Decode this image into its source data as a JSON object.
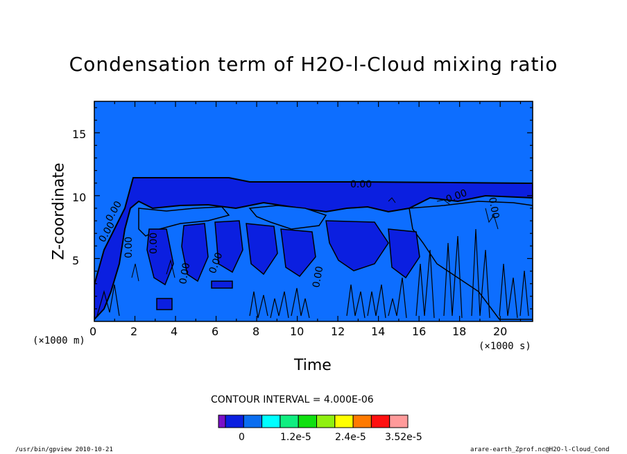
{
  "chart_data": {
    "type": "heatmap",
    "title": "Condensation term of H2O-l-Cloud mixing ratio",
    "xlabel": "Time",
    "ylabel": "Z-coordinate",
    "x_unit": "(×1000 s)",
    "y_unit": "(×1000 m)",
    "xlim": [
      0,
      21.6
    ],
    "ylim": [
      0,
      17.5
    ],
    "x_ticks": [
      "0",
      "2",
      "4",
      "6",
      "8",
      "10",
      "12",
      "14",
      "16",
      "18",
      "20"
    ],
    "x_tick_values": [
      0,
      2,
      4,
      6,
      8,
      10,
      12,
      14,
      16,
      18,
      20
    ],
    "y_ticks": [
      "5",
      "10",
      "15"
    ],
    "y_tick_values": [
      5,
      10,
      15
    ],
    "contour_interval": "CONTOUR INTERVAL = 4.000E-06",
    "contour_labels": [
      "0.00",
      "0.00",
      "0.00",
      "0.00",
      "0.00",
      "0.00",
      "0.00",
      "0.00",
      "0.00",
      "0.00"
    ],
    "cloud_top_km": 11.7,
    "background_color": "#0d6eff",
    "legend": {
      "colors": [
        "#7a10c8",
        "#0b1fe0",
        "#0b6ef0",
        "#00ffff",
        "#10ee80",
        "#10e010",
        "#90f010",
        "#ffff00",
        "#ff7a00",
        "#ff1010",
        "#ff9a9a"
      ],
      "labels": [
        "0",
        "1.2e-5",
        "2.4e-5",
        "3.52e-5"
      ]
    }
  },
  "footer": {
    "left": "/usr/bin/gpview  2010-10-21",
    "right": "arare-earth_Zprof.nc@H2O-l-Cloud_Cond"
  }
}
